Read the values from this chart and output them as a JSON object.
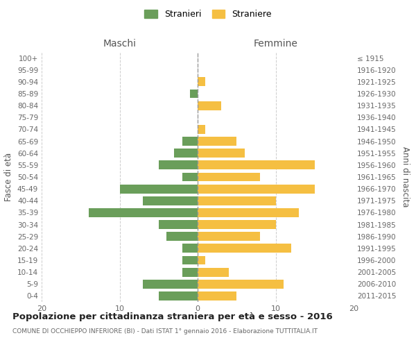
{
  "age_groups": [
    "0-4",
    "5-9",
    "10-14",
    "15-19",
    "20-24",
    "25-29",
    "30-34",
    "35-39",
    "40-44",
    "45-49",
    "50-54",
    "55-59",
    "60-64",
    "65-69",
    "70-74",
    "75-79",
    "80-84",
    "85-89",
    "90-94",
    "95-99",
    "100+"
  ],
  "birth_years": [
    "2011-2015",
    "2006-2010",
    "2001-2005",
    "1996-2000",
    "1991-1995",
    "1986-1990",
    "1981-1985",
    "1976-1980",
    "1971-1975",
    "1966-1970",
    "1961-1965",
    "1956-1960",
    "1951-1955",
    "1946-1950",
    "1941-1945",
    "1936-1940",
    "1931-1935",
    "1926-1930",
    "1921-1925",
    "1916-1920",
    "≤ 1915"
  ],
  "maschi": [
    5,
    7,
    2,
    2,
    2,
    4,
    5,
    14,
    7,
    10,
    2,
    5,
    3,
    2,
    0,
    0,
    0,
    1,
    0,
    0,
    0
  ],
  "femmine": [
    5,
    11,
    4,
    1,
    12,
    8,
    10,
    13,
    10,
    15,
    8,
    15,
    6,
    5,
    1,
    0,
    3,
    0,
    1,
    0,
    0
  ],
  "male_color": "#6a9e5a",
  "female_color": "#f5bf42",
  "title": "Popolazione per cittadinanza straniera per età e sesso - 2016",
  "subtitle": "COMUNE DI OCCHIEPPO INFERIORE (BI) - Dati ISTAT 1° gennaio 2016 - Elaborazione TUTTITALIA.IT",
  "ylabel_left": "Fasce di età",
  "ylabel_right": "Anni di nascita",
  "xlabel_left": "Maschi",
  "xlabel_right": "Femmine",
  "legend_stranieri": "Stranieri",
  "legend_straniere": "Straniere",
  "xlim": 20,
  "background_color": "#ffffff",
  "grid_color": "#cccccc"
}
